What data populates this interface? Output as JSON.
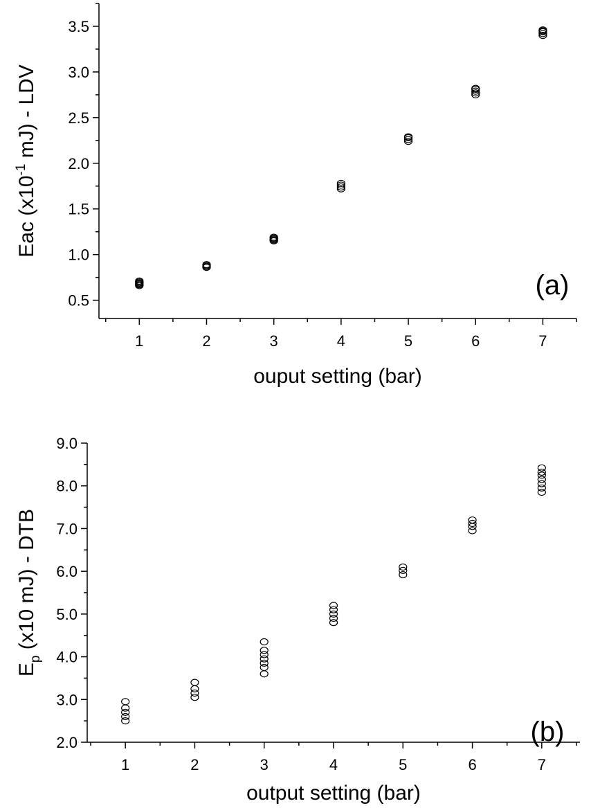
{
  "chart_data": [
    {
      "type": "scatter",
      "panel_label": "(a)",
      "xlabel": "ouput setting (bar)",
      "ylabel": {
        "prefix": "Eac (x10",
        "sup": "-1",
        "suffix": " mJ) - LDV"
      },
      "xlim": [
        0.4,
        7.5
      ],
      "ylim": [
        0.3,
        3.75
      ],
      "x_ticks": [
        "1",
        "2",
        "3",
        "4",
        "5",
        "6",
        "7"
      ],
      "y_ticks": [
        "0.5",
        "1.0",
        "1.5",
        "2.0",
        "2.5",
        "3.0",
        "3.5"
      ],
      "marker": "open-circle",
      "series": [
        {
          "points": [
            [
              1,
              0.66
            ],
            [
              1,
              0.67
            ],
            [
              1,
              0.68
            ],
            [
              1,
              0.69
            ],
            [
              1,
              0.7
            ],
            [
              1,
              0.71
            ],
            [
              2,
              0.86
            ],
            [
              2,
              0.87
            ],
            [
              2,
              0.88
            ],
            [
              2,
              0.89
            ],
            [
              3,
              1.15
            ],
            [
              3,
              1.16
            ],
            [
              3,
              1.17
            ],
            [
              3,
              1.18
            ],
            [
              3,
              1.19
            ],
            [
              4,
              1.72
            ],
            [
              4,
              1.74
            ],
            [
              4,
              1.76
            ],
            [
              4,
              1.78
            ],
            [
              5,
              2.24
            ],
            [
              5,
              2.26
            ],
            [
              5,
              2.28
            ],
            [
              5,
              2.29
            ],
            [
              6,
              2.75
            ],
            [
              6,
              2.77
            ],
            [
              6,
              2.79
            ],
            [
              6,
              2.81
            ],
            [
              6,
              2.82
            ],
            [
              7,
              3.4
            ],
            [
              7,
              3.42
            ],
            [
              7,
              3.44
            ],
            [
              7,
              3.45
            ],
            [
              7,
              3.46
            ]
          ]
        }
      ]
    },
    {
      "type": "scatter",
      "panel_label": "(b)",
      "xlabel": "output setting (bar)",
      "ylabel": {
        "prefix": "E",
        "sub": "p",
        "suffix": " (x10 mJ) - DTB"
      },
      "xlim": [
        0.45,
        7.55
      ],
      "ylim": [
        2.0,
        9.0
      ],
      "x_ticks": [
        "1",
        "2",
        "3",
        "4",
        "5",
        "6",
        "7"
      ],
      "y_ticks": [
        "2.0",
        "3.0",
        "4.0",
        "5.0",
        "6.0",
        "7.0",
        "8.0",
        "9.0"
      ],
      "marker": "open-circle",
      "series": [
        {
          "points": [
            [
              1,
              2.5
            ],
            [
              1,
              2.6
            ],
            [
              1,
              2.7
            ],
            [
              1,
              2.8
            ],
            [
              1,
              2.95
            ],
            [
              2,
              3.05
            ],
            [
              2,
              3.15
            ],
            [
              2,
              3.25
            ],
            [
              2,
              3.4
            ],
            [
              3,
              3.6
            ],
            [
              3,
              3.75
            ],
            [
              3,
              3.85
            ],
            [
              3,
              3.95
            ],
            [
              3,
              4.05
            ],
            [
              3,
              4.15
            ],
            [
              3,
              4.35
            ],
            [
              4,
              4.8
            ],
            [
              4,
              4.9
            ],
            [
              4,
              5.0
            ],
            [
              4,
              5.1
            ],
            [
              4,
              5.2
            ],
            [
              5,
              5.92
            ],
            [
              5,
              6.02
            ],
            [
              5,
              6.1
            ],
            [
              6,
              6.95
            ],
            [
              6,
              7.05
            ],
            [
              6,
              7.12
            ],
            [
              6,
              7.2
            ],
            [
              7,
              7.85
            ],
            [
              7,
              7.95
            ],
            [
              7,
              8.05
            ],
            [
              7,
              8.15
            ],
            [
              7,
              8.25
            ],
            [
              7,
              8.32
            ],
            [
              7,
              8.42
            ]
          ]
        }
      ]
    }
  ]
}
